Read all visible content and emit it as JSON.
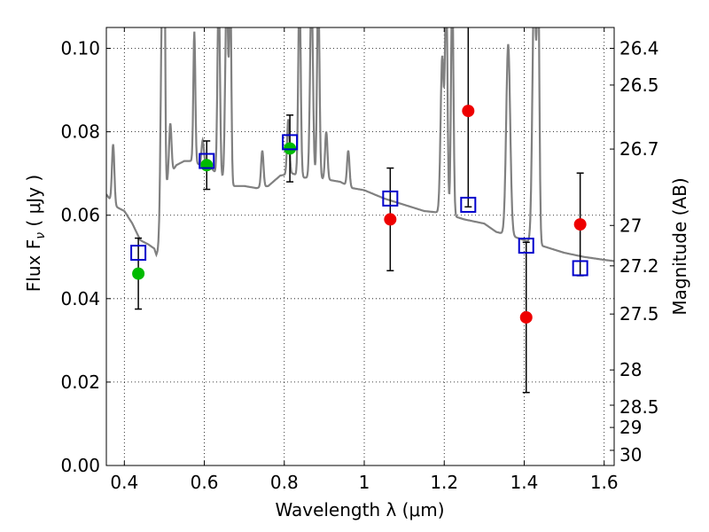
{
  "chart_data": {
    "type": "scatter",
    "xlabel": "Wavelength  λ (μm)",
    "ylabel": "Flux  F",
    "ylabel_sub": "ν",
    "ylabel_unit": " ( μJy )",
    "y2label": "Magnitude (AB)",
    "xlim": [
      0.355,
      1.625
    ],
    "ylim": [
      0.0,
      0.105
    ],
    "x_ticks": [
      0.4,
      0.6,
      0.8,
      1.0,
      1.2,
      1.4,
      1.6
    ],
    "x_tick_labels": [
      "0.4",
      "0.6",
      "0.8",
      "1",
      "1.2",
      "1.4",
      "1.6"
    ],
    "y_ticks": [
      0.0,
      0.02,
      0.04,
      0.06,
      0.08,
      0.1
    ],
    "y_tick_labels": [
      "0.00",
      "0.02",
      "0.04",
      "0.06",
      "0.08",
      "0.10"
    ],
    "y2_ticks": [
      {
        "label": "26.4",
        "mag": 26.4
      },
      {
        "label": "26.5",
        "mag": 26.5
      },
      {
        "label": "26.7",
        "mag": 26.7
      },
      {
        "label": "27",
        "mag": 27.0
      },
      {
        "label": "27.2",
        "mag": 27.2
      },
      {
        "label": "27.5",
        "mag": 27.5
      },
      {
        "label": "28",
        "mag": 28.0
      },
      {
        "label": "28.5",
        "mag": 28.5
      },
      {
        "label": "29",
        "mag": 29.0
      },
      {
        "label": "30",
        "mag": 30.0
      }
    ],
    "grid": true,
    "colors": {
      "sed": "#808080",
      "model_box": "#0000cc",
      "optical_point": "#00bb00",
      "nir_point": "#ee0000",
      "errorbar": "#000000"
    },
    "observed": [
      {
        "x": 0.435,
        "y": 0.046,
        "err": 0.0085,
        "group": "optical"
      },
      {
        "x": 0.606,
        "y": 0.072,
        "err": 0.0058,
        "group": "optical"
      },
      {
        "x": 0.814,
        "y": 0.076,
        "err": 0.008,
        "group": "optical"
      },
      {
        "x": 1.065,
        "y": 0.059,
        "err": 0.0123,
        "group": "nir"
      },
      {
        "x": 1.26,
        "y": 0.085,
        "err": 0.023,
        "group": "nir"
      },
      {
        "x": 1.405,
        "y": 0.0355,
        "err": 0.018,
        "group": "nir"
      },
      {
        "x": 1.54,
        "y": 0.0578,
        "err": 0.0123,
        "group": "nir"
      }
    ],
    "model_photometry": [
      {
        "x": 0.435,
        "y": 0.051
      },
      {
        "x": 0.606,
        "y": 0.073
      },
      {
        "x": 0.814,
        "y": 0.0775
      },
      {
        "x": 1.065,
        "y": 0.064
      },
      {
        "x": 1.26,
        "y": 0.0625
      },
      {
        "x": 1.405,
        "y": 0.0527
      },
      {
        "x": 1.54,
        "y": 0.0473
      }
    ],
    "sed_continuum": [
      [
        0.355,
        0.065
      ],
      [
        0.37,
        0.063
      ],
      [
        0.38,
        0.062
      ],
      [
        0.4,
        0.061
      ],
      [
        0.42,
        0.058
      ],
      [
        0.44,
        0.054
      ],
      [
        0.46,
        0.053
      ],
      [
        0.475,
        0.052
      ],
      [
        0.48,
        0.0505
      ],
      [
        0.488,
        0.0518
      ],
      [
        0.495,
        0.061
      ],
      [
        0.51,
        0.069
      ],
      [
        0.53,
        0.072
      ],
      [
        0.55,
        0.073
      ],
      [
        0.57,
        0.073
      ],
      [
        0.59,
        0.072
      ],
      [
        0.61,
        0.072
      ],
      [
        0.63,
        0.07
      ],
      [
        0.65,
        0.0685
      ],
      [
        0.67,
        0.067
      ],
      [
        0.7,
        0.067
      ],
      [
        0.73,
        0.0665
      ],
      [
        0.76,
        0.067
      ],
      [
        0.79,
        0.0695
      ],
      [
        0.82,
        0.07
      ],
      [
        0.85,
        0.069
      ],
      [
        0.88,
        0.069
      ],
      [
        0.91,
        0.0685
      ],
      [
        0.94,
        0.068
      ],
      [
        0.97,
        0.0665
      ],
      [
        1.0,
        0.066
      ],
      [
        1.05,
        0.064
      ],
      [
        1.1,
        0.0625
      ],
      [
        1.15,
        0.061
      ],
      [
        1.2,
        0.0605
      ],
      [
        1.25,
        0.059
      ],
      [
        1.3,
        0.058
      ],
      [
        1.33,
        0.056
      ],
      [
        1.37,
        0.055
      ],
      [
        1.4,
        0.054
      ],
      [
        1.45,
        0.0525
      ],
      [
        1.5,
        0.051
      ],
      [
        1.55,
        0.05
      ],
      [
        1.6,
        0.0493
      ],
      [
        1.625,
        0.049
      ]
    ],
    "sed_lines": [
      {
        "x": 0.372,
        "peak": 0.077,
        "w": 0.003
      },
      {
        "x": 0.495,
        "peak": 0.115,
        "w": 0.004
      },
      {
        "x": 0.5,
        "peak": 0.115,
        "w": 0.002
      },
      {
        "x": 0.515,
        "peak": 0.082,
        "w": 0.003
      },
      {
        "x": 0.575,
        "peak": 0.104,
        "w": 0.0025
      },
      {
        "x": 0.596,
        "peak": 0.078,
        "w": 0.003
      },
      {
        "x": 0.636,
        "peak": 0.115,
        "w": 0.003
      },
      {
        "x": 0.656,
        "peak": 0.115,
        "w": 0.0035
      },
      {
        "x": 0.665,
        "peak": 0.115,
        "w": 0.0025
      },
      {
        "x": 0.745,
        "peak": 0.0755,
        "w": 0.003
      },
      {
        "x": 0.81,
        "peak": 0.083,
        "w": 0.003
      },
      {
        "x": 0.838,
        "peak": 0.115,
        "w": 0.003
      },
      {
        "x": 0.868,
        "peak": 0.115,
        "w": 0.0035
      },
      {
        "x": 0.885,
        "peak": 0.115,
        "w": 0.003
      },
      {
        "x": 0.905,
        "peak": 0.08,
        "w": 0.003
      },
      {
        "x": 0.96,
        "peak": 0.0755,
        "w": 0.003
      },
      {
        "x": 1.195,
        "peak": 0.098,
        "w": 0.004
      },
      {
        "x": 1.205,
        "peak": 0.115,
        "w": 0.003
      },
      {
        "x": 1.22,
        "peak": 0.115,
        "w": 0.003
      },
      {
        "x": 1.36,
        "peak": 0.101,
        "w": 0.005
      },
      {
        "x": 1.425,
        "peak": 0.115,
        "w": 0.0045
      },
      {
        "x": 1.435,
        "peak": 0.115,
        "w": 0.003
      }
    ]
  }
}
